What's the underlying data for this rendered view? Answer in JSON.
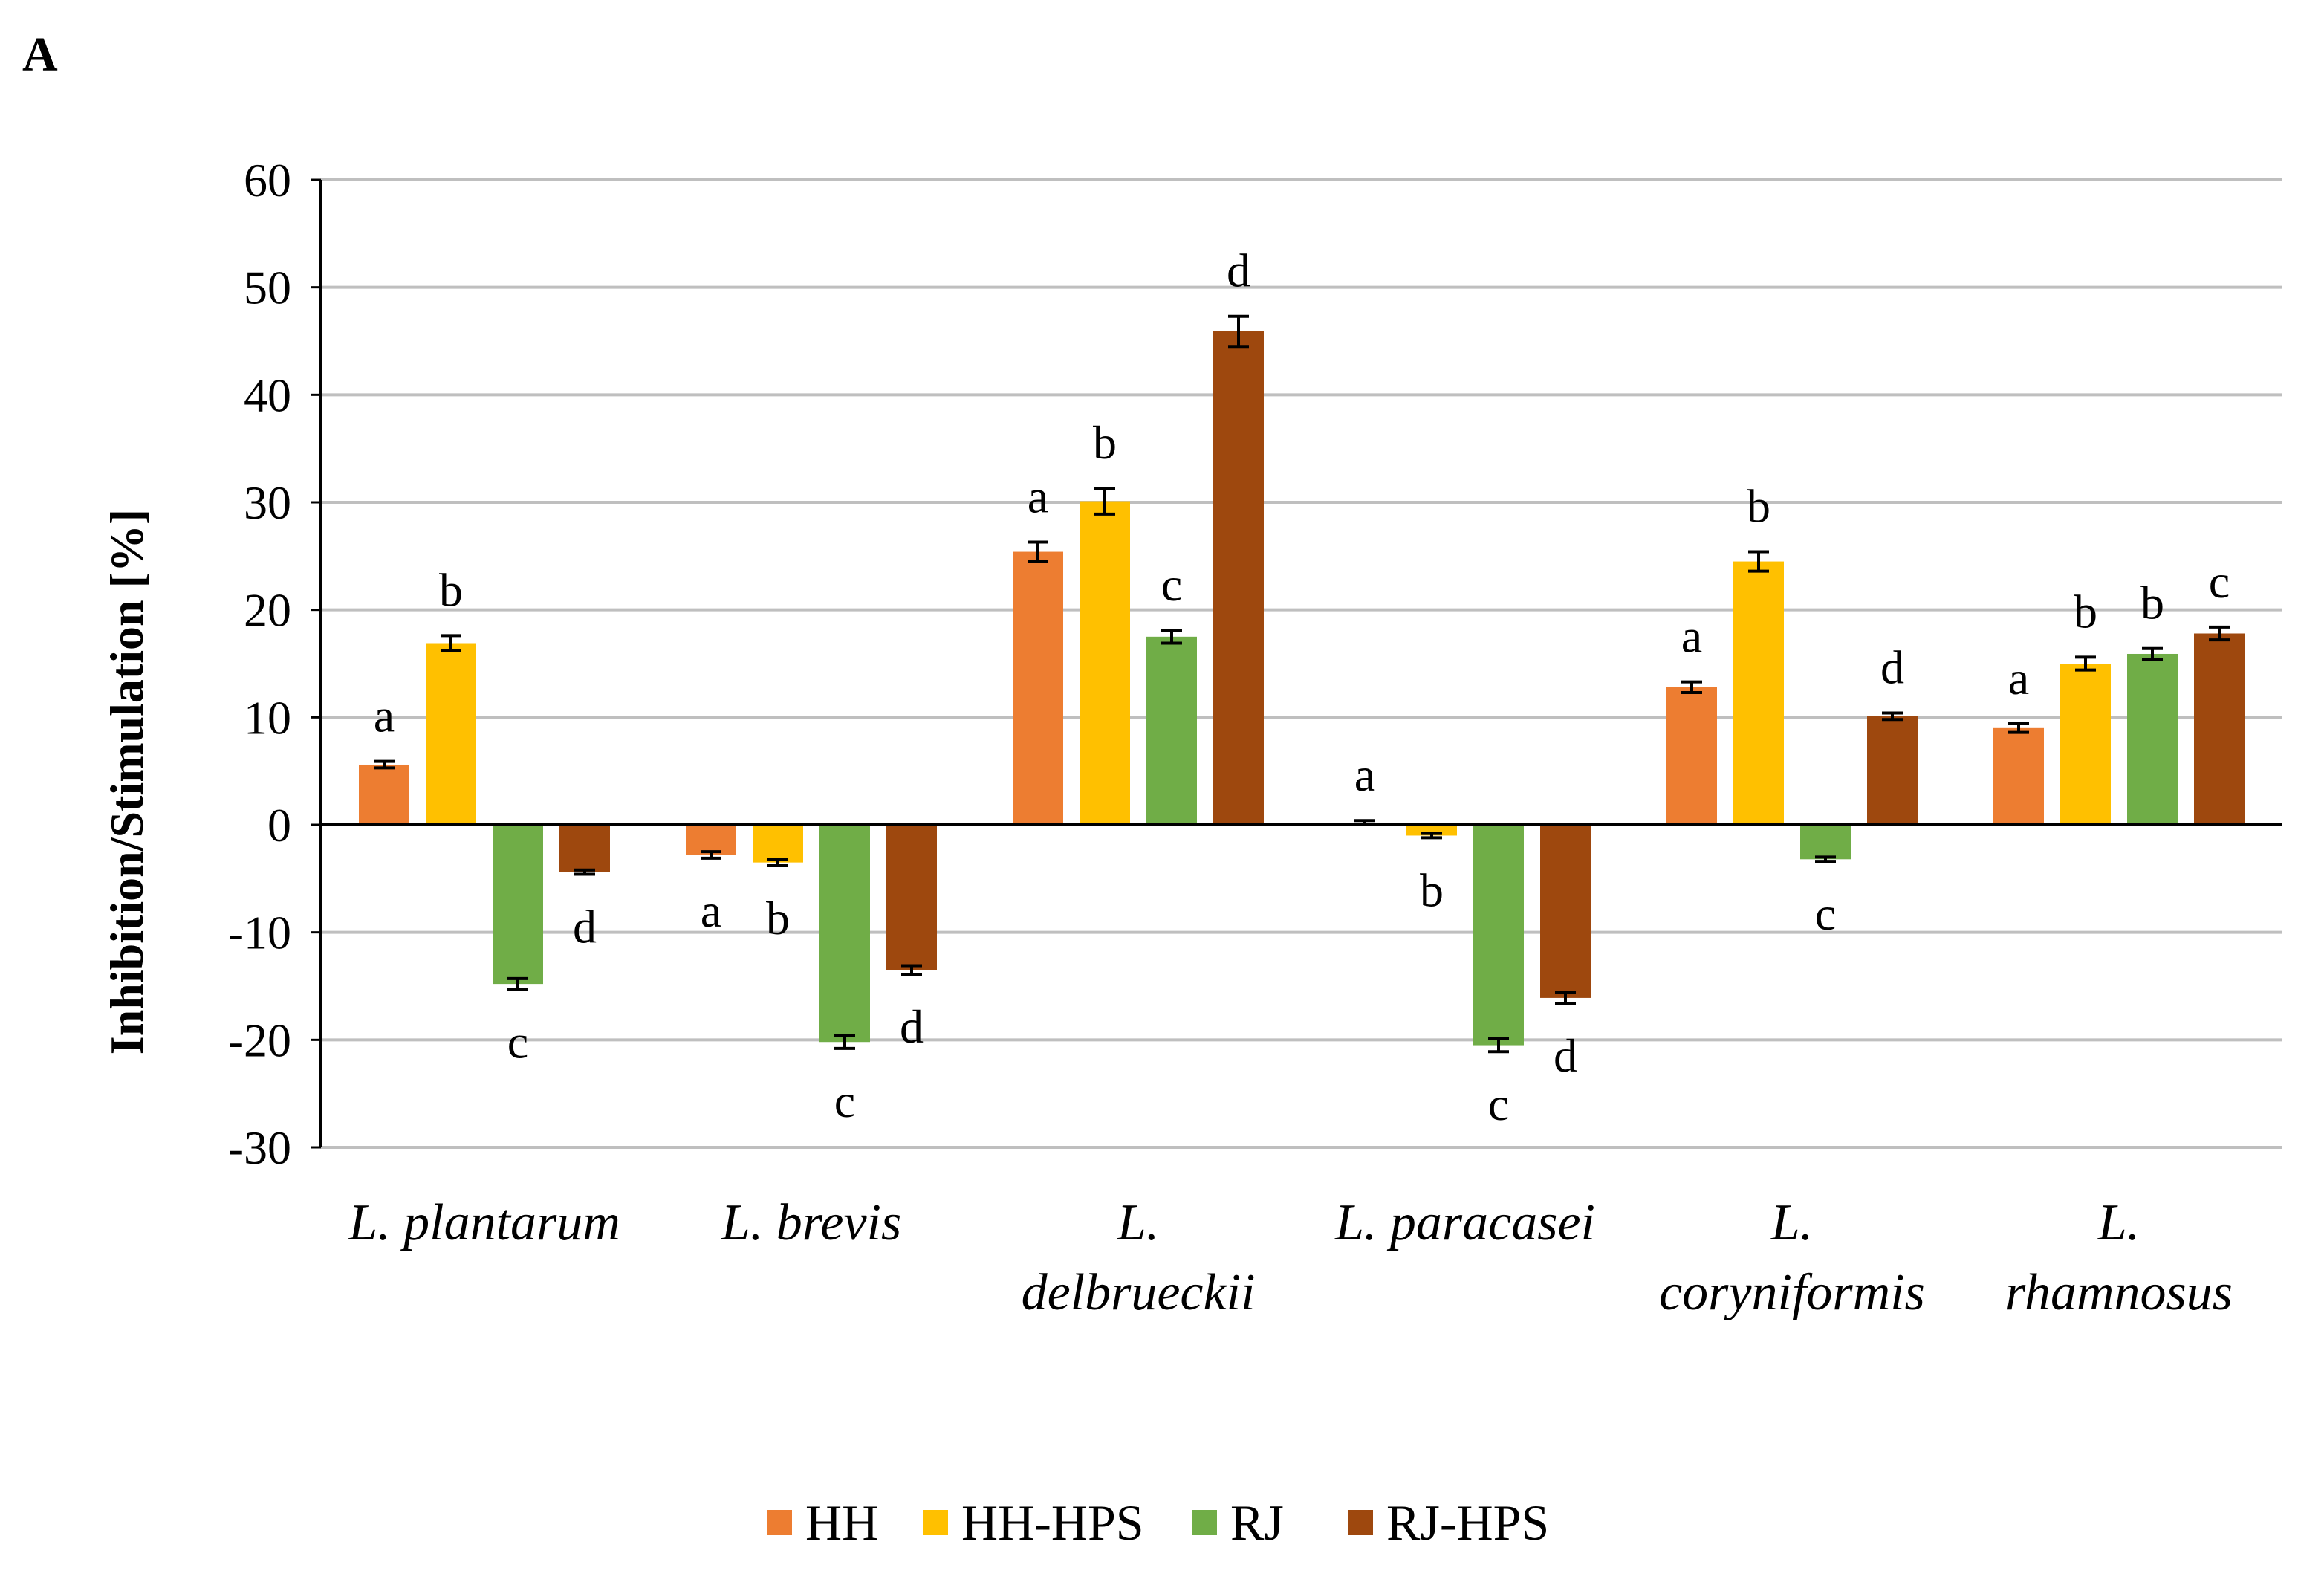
{
  "panel_label": "A",
  "chart_data": {
    "type": "bar",
    "title": "",
    "xlabel": "",
    "ylabel": "Inhibition/Stimulation [%]",
    "ylim": [
      -30,
      60
    ],
    "yticks": [
      -30,
      -20,
      -10,
      0,
      10,
      20,
      30,
      40,
      50,
      60
    ],
    "grid": true,
    "legend_position": "bottom-center",
    "categories": [
      [
        "L. plantarum"
      ],
      [
        "L. brevis"
      ],
      [
        "L.",
        "delbrueckii"
      ],
      [
        "L. paracasei"
      ],
      [
        "L.",
        "coryniformis"
      ],
      [
        "L.",
        "rhamnosus"
      ]
    ],
    "series": [
      {
        "name": "HH",
        "color": "#ED7D31",
        "values": [
          5.6,
          -2.8,
          25.4,
          0.2,
          12.8,
          9.0
        ],
        "errors": [
          0.3,
          0.3,
          0.9,
          0.2,
          0.5,
          0.4
        ],
        "letters": [
          "a",
          "a",
          "a",
          "a",
          "a",
          "a"
        ]
      },
      {
        "name": "HH-HPS",
        "color": "#FFC000",
        "values": [
          16.9,
          -3.5,
          30.1,
          -1.0,
          24.5,
          15.0
        ],
        "errors": [
          0.7,
          0.3,
          1.2,
          0.2,
          0.9,
          0.6
        ],
        "letters": [
          "b",
          "b",
          "b",
          "b",
          "b",
          "b"
        ]
      },
      {
        "name": "RJ",
        "color": "#70AD47",
        "values": [
          -14.8,
          -20.2,
          17.5,
          -20.5,
          -3.2,
          15.9
        ],
        "errors": [
          0.5,
          0.6,
          0.6,
          0.6,
          0.2,
          0.5
        ],
        "letters": [
          "c",
          "c",
          "c",
          "c",
          "c",
          "b"
        ]
      },
      {
        "name": "RJ-HPS",
        "color": "#9E480E",
        "values": [
          -4.4,
          -13.5,
          45.9,
          -16.1,
          10.1,
          17.8
        ],
        "errors": [
          0.2,
          0.4,
          1.4,
          0.5,
          0.3,
          0.6
        ],
        "letters": [
          "d",
          "d",
          "d",
          "d",
          "d",
          "c"
        ]
      }
    ]
  }
}
